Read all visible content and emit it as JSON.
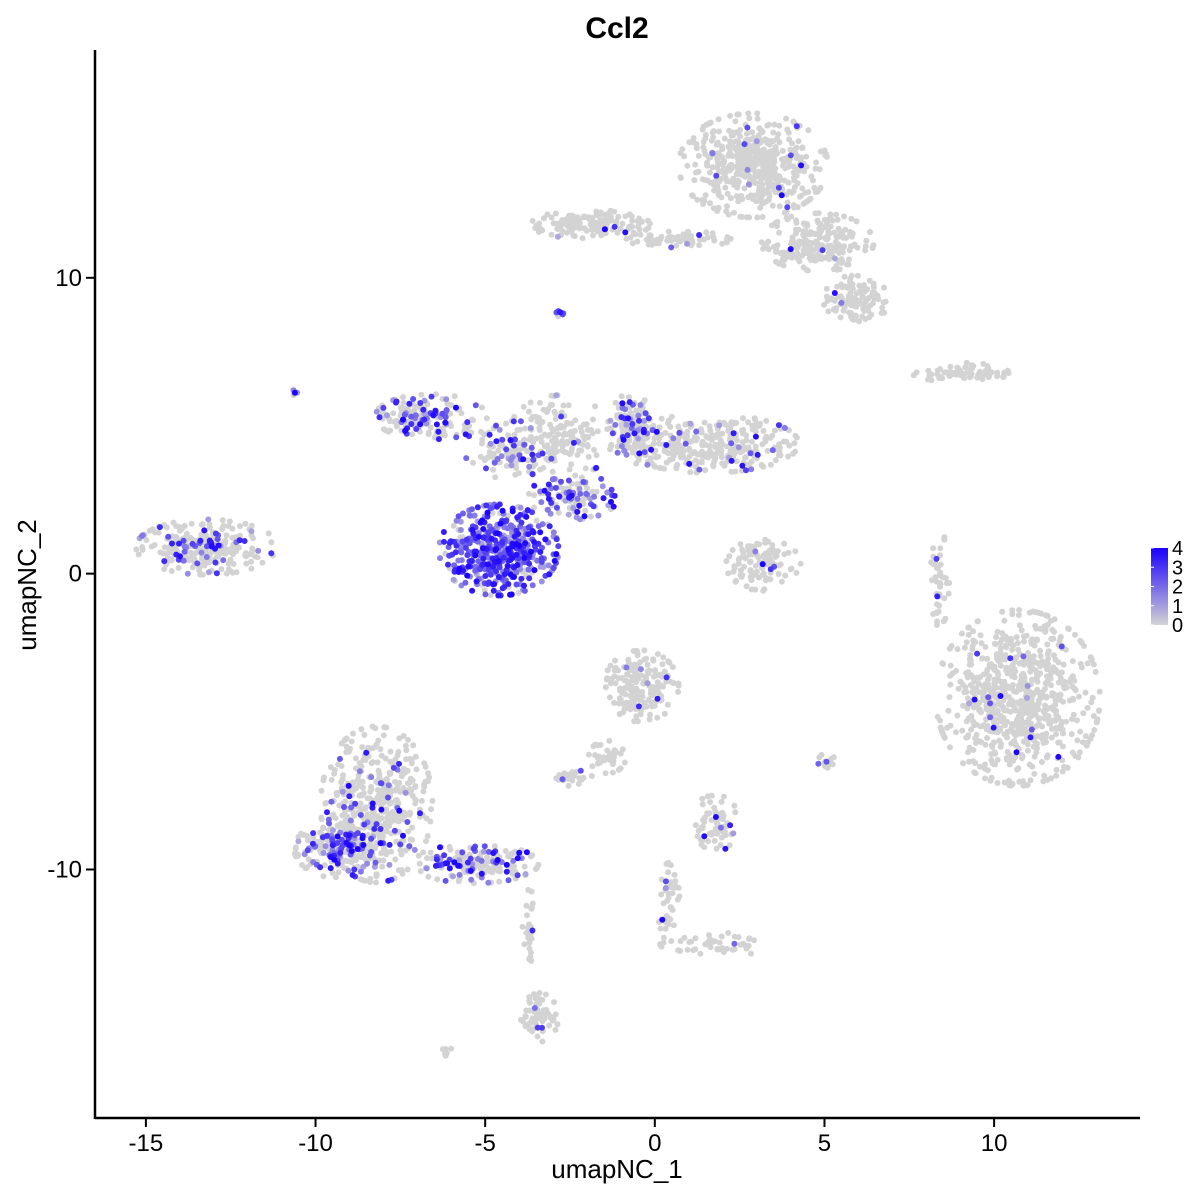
{
  "chart_data": {
    "type": "scatter",
    "title": "Ccl2",
    "xlabel": "umapNC_1",
    "ylabel": "umapNC_2",
    "xlim": [
      -16.5,
      14.3
    ],
    "ylim": [
      -18.4,
      17.7
    ],
    "x_ticks": [
      -15,
      -10,
      -5,
      0,
      5,
      10
    ],
    "x_tick_labels": [
      "-15",
      "-10",
      "-5",
      "0",
      "5",
      "10"
    ],
    "y_ticks": [
      -10,
      0,
      10
    ],
    "y_tick_labels": [
      "-10",
      "0",
      "10"
    ],
    "grid": false,
    "legend_position": "right",
    "color_scale": {
      "low_color": "#d3d3d3",
      "high_color": "#1a00ff",
      "min": 0,
      "max": 4,
      "breaks": [
        0,
        1,
        2,
        3,
        4
      ],
      "break_labels": [
        "0",
        "1",
        "2",
        "3",
        "4"
      ]
    },
    "clusters": [
      {
        "cx": 2.9,
        "cy": 13.8,
        "rx": 2.0,
        "ry": 1.6,
        "n": 520,
        "expr": 0.02
      },
      {
        "cx": 4.8,
        "cy": 11.2,
        "rx": 1.5,
        "ry": 0.9,
        "n": 220,
        "expr": 0.02
      },
      {
        "cx": 5.9,
        "cy": 9.3,
        "rx": 1.0,
        "ry": 0.7,
        "n": 110,
        "expr": 0.02
      },
      {
        "cx": -1.9,
        "cy": 11.8,
        "rx": 1.6,
        "ry": 0.45,
        "n": 150,
        "expr": 0.03
      },
      {
        "cx": 0.7,
        "cy": 11.3,
        "rx": 1.4,
        "ry": 0.25,
        "n": 60,
        "expr": 0.02
      },
      {
        "cx": 9.0,
        "cy": 6.8,
        "rx": 1.3,
        "ry": 0.3,
        "n": 70,
        "expr": 0.01
      },
      {
        "cx": -2.8,
        "cy": 8.8,
        "rx": 0.15,
        "ry": 0.15,
        "n": 10,
        "expr": 0.7
      },
      {
        "cx": 1.6,
        "cy": 4.4,
        "rx": 2.4,
        "ry": 0.9,
        "n": 330,
        "expr": 0.08
      },
      {
        "cx": -0.7,
        "cy": 4.9,
        "rx": 0.6,
        "ry": 1.1,
        "n": 130,
        "expr": 0.4
      },
      {
        "cx": -6.6,
        "cy": 5.3,
        "rx": 1.5,
        "ry": 0.7,
        "n": 170,
        "expr": 0.3
      },
      {
        "cx": -4.3,
        "cy": 4.2,
        "rx": 1.2,
        "ry": 0.9,
        "n": 110,
        "expr": 0.2
      },
      {
        "cx": -2.8,
        "cy": 4.6,
        "rx": 1.4,
        "ry": 1.3,
        "n": 160,
        "expr": 0.1
      },
      {
        "cx": -2.4,
        "cy": 2.6,
        "rx": 1.2,
        "ry": 0.7,
        "n": 110,
        "expr": 0.45
      },
      {
        "cx": -4.6,
        "cy": 0.8,
        "rx": 1.6,
        "ry": 1.4,
        "n": 480,
        "expr": 0.85
      },
      {
        "cx": -13.2,
        "cy": 0.9,
        "rx": 1.9,
        "ry": 0.85,
        "n": 270,
        "expr": 0.25
      },
      {
        "cx": 3.2,
        "cy": 0.3,
        "rx": 1.0,
        "ry": 0.8,
        "n": 110,
        "expr": 0.04
      },
      {
        "cx": 8.4,
        "cy": -0.2,
        "rx": 0.25,
        "ry": 1.5,
        "n": 45,
        "expr": 0.05
      },
      {
        "cx": 10.7,
        "cy": -4.2,
        "rx": 2.2,
        "ry": 2.7,
        "n": 750,
        "expr": 0.02
      },
      {
        "cx": -0.4,
        "cy": -3.8,
        "rx": 1.0,
        "ry": 1.1,
        "n": 180,
        "expr": 0.03
      },
      {
        "cx": -1.4,
        "cy": -6.2,
        "rx": 0.5,
        "ry": 0.5,
        "n": 40,
        "expr": 0.02
      },
      {
        "cx": -2.5,
        "cy": -6.9,
        "rx": 0.6,
        "ry": 0.25,
        "n": 30,
        "expr": 0.05
      },
      {
        "cx": 1.8,
        "cy": -8.4,
        "rx": 0.6,
        "ry": 0.9,
        "n": 70,
        "expr": 0.1
      },
      {
        "cx": 5.1,
        "cy": -6.4,
        "rx": 0.3,
        "ry": 0.3,
        "n": 15,
        "expr": 0.02
      },
      {
        "cx": -8.2,
        "cy": -7.8,
        "rx": 1.5,
        "ry": 2.4,
        "n": 450,
        "expr": 0.1
      },
      {
        "cx": -9.3,
        "cy": -9.3,
        "rx": 1.2,
        "ry": 0.9,
        "n": 220,
        "expr": 0.35
      },
      {
        "cx": -5.3,
        "cy": -9.8,
        "rx": 1.7,
        "ry": 0.6,
        "n": 180,
        "expr": 0.3
      },
      {
        "cx": -3.4,
        "cy": -15.0,
        "rx": 0.5,
        "ry": 0.75,
        "n": 60,
        "expr": 0.1
      },
      {
        "cx": -3.7,
        "cy": -12.0,
        "rx": 0.2,
        "ry": 1.2,
        "n": 25,
        "expr": 0.05
      },
      {
        "cx": 0.4,
        "cy": -11.0,
        "rx": 0.3,
        "ry": 1.3,
        "n": 40,
        "expr": 0.08
      },
      {
        "cx": 1.8,
        "cy": -12.5,
        "rx": 1.5,
        "ry": 0.4,
        "n": 50,
        "expr": 0.03
      },
      {
        "cx": -10.6,
        "cy": 6.1,
        "rx": 0.1,
        "ry": 0.1,
        "n": 5,
        "expr": 0.5
      },
      {
        "cx": -6.1,
        "cy": -16.2,
        "rx": 0.2,
        "ry": 0.15,
        "n": 6,
        "expr": 0.02
      }
    ]
  }
}
